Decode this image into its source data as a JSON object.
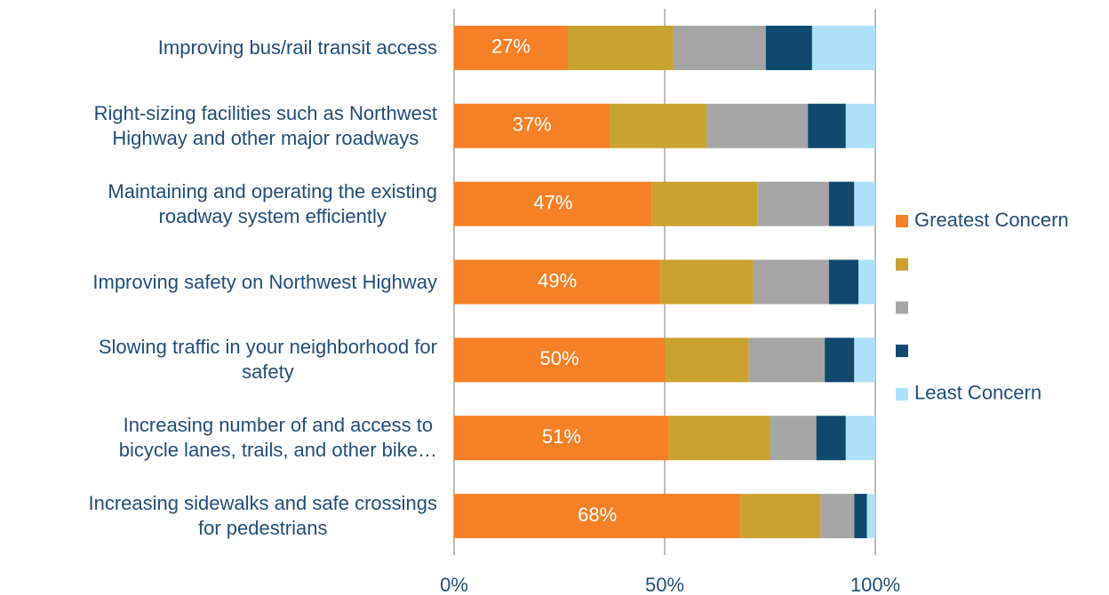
{
  "chart_data": {
    "type": "stacked_barh",
    "categories": [
      "Improving bus/rail transit access",
      "Right-sizing facilities such as Northwest\nHighway and other major roadways",
      "Maintaining and operating the existing\nroadway system efficiently",
      "Improving safety on Northwest Highway",
      "Slowing traffic in your neighborhood for\nsafety",
      "Increasing number of and access to\nbicycle lanes, trails, and other bike…",
      "Increasing sidewalks and safe crossings\nfor pedestrians"
    ],
    "series": [
      {
        "name": "Greatest Concern",
        "color": "#f58025",
        "values": [
          27,
          37,
          47,
          49,
          50,
          51,
          68
        ],
        "value_labels": [
          "27%",
          "37%",
          "47%",
          "49%",
          "50%",
          "51%",
          "68%"
        ]
      },
      {
        "name": null,
        "color": "#c9a22f",
        "values": [
          25,
          23,
          25,
          22,
          20,
          24,
          19
        ]
      },
      {
        "name": null,
        "color": "#a5a5a5",
        "values": [
          22,
          24,
          17,
          18,
          18,
          11,
          8
        ]
      },
      {
        "name": null,
        "color": "#0f4a6e",
        "values": [
          11,
          9,
          6,
          7,
          7,
          7,
          3
        ]
      },
      {
        "name": "Least Concern",
        "color": "#aee0f9",
        "values": [
          15,
          7,
          5,
          4,
          5,
          7,
          2
        ]
      }
    ],
    "xlim": [
      0,
      100
    ],
    "xticks": [
      {
        "value": 0,
        "label": "0%"
      },
      {
        "value": 50,
        "label": "50%"
      },
      {
        "value": 100,
        "label": "100%"
      }
    ],
    "grid": true,
    "legend": "right"
  }
}
